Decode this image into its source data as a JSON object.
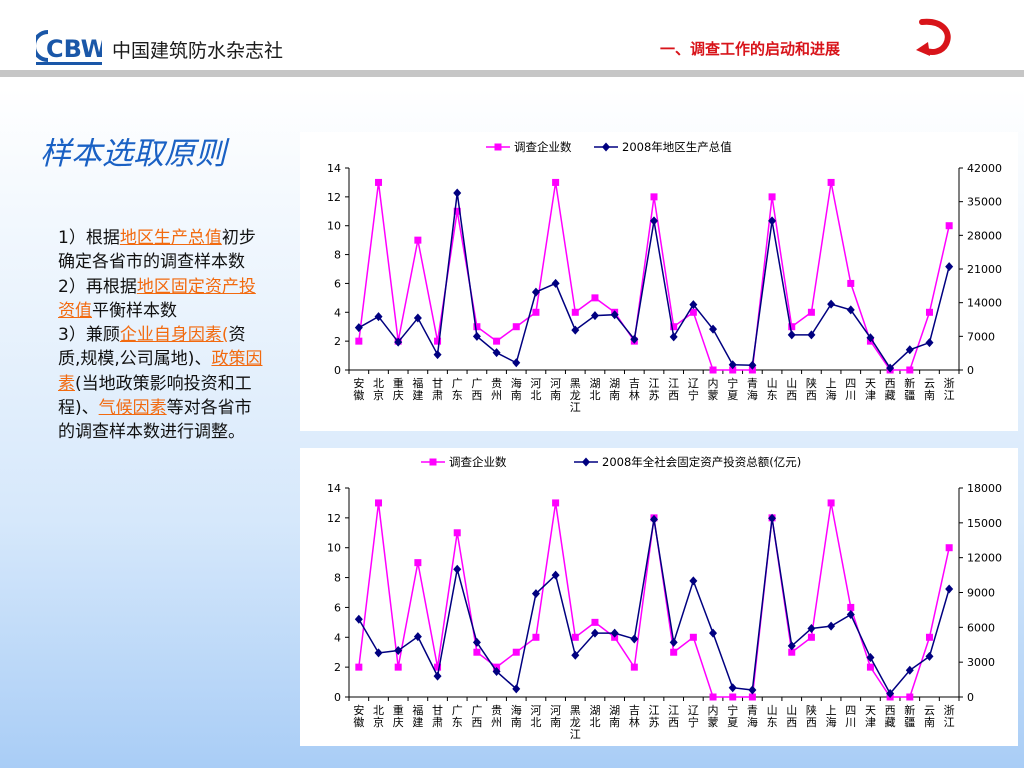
{
  "header": {
    "logo_text": "CBW",
    "brand_name": "中国建筑防水杂志社",
    "section_title": "一、调查工作的启动和进展",
    "return_icon": "curved-return-arrow-icon"
  },
  "slide": {
    "title": "样本选取原则",
    "points": [
      {
        "pre": "1）根据",
        "link": "地区生产总值",
        "post": "初步确定各省市的调查样本数"
      },
      {
        "pre": "2）再根据",
        "link": "地区固定资产投资值",
        "post": "平衡样本数"
      },
      {
        "pre": "3）兼顾",
        "link": "企业自身因素(",
        "mid1": "资质,规模,公司属地)、",
        "link2": "政策因素",
        "mid2": "(当地政策影响投资和工程)、",
        "link3": "气候因素",
        "post": "等对各省市的调查样本数进行调整。"
      }
    ]
  },
  "colors": {
    "series_survey": "#ff00ff",
    "series_econ": "#000080",
    "title_blue": "#1a61c4",
    "section_red": "#d8141a",
    "highlight": "#f26a0f"
  },
  "chart_data": [
    {
      "type": "line",
      "title": "",
      "categories": [
        "安徽",
        "北京",
        "重庆",
        "福建",
        "甘肃",
        "广东",
        "广西",
        "贵州",
        "海南",
        "河北",
        "河南",
        "黑龙江",
        "湖北",
        "湖南",
        "吉林",
        "江苏",
        "江西",
        "辽宁",
        "内蒙",
        "宁夏",
        "青海",
        "山东",
        "山西",
        "陕西",
        "上海",
        "四川",
        "天津",
        "西藏",
        "新疆",
        "云南",
        "浙江"
      ],
      "series": [
        {
          "name": "调查企业数",
          "axis": "left",
          "values": [
            2,
            13,
            2,
            9,
            2,
            11,
            3,
            2,
            3,
            4,
            13,
            4,
            5,
            4,
            2,
            12,
            3,
            4,
            0,
            0,
            0,
            12,
            3,
            4,
            13,
            6,
            2,
            0,
            0,
            4,
            10
          ]
        },
        {
          "name": "2008年地区生产总值",
          "axis": "right",
          "values": [
            8800,
            11100,
            5800,
            10800,
            3200,
            36800,
            7000,
            3600,
            1500,
            16200,
            18000,
            8300,
            11300,
            11500,
            6400,
            31000,
            6900,
            13600,
            8500,
            1100,
            1000,
            31000,
            7300,
            7300,
            13700,
            12500,
            6700,
            400,
            4200,
            5700,
            21500
          ]
        }
      ],
      "yleft": {
        "min": 0,
        "max": 14,
        "ticks": [
          0,
          2,
          4,
          6,
          8,
          10,
          12,
          14
        ]
      },
      "yright": {
        "min": 0,
        "max": 42000,
        "ticks": [
          0,
          7000,
          14000,
          21000,
          28000,
          35000,
          42000
        ]
      },
      "legend": "top"
    },
    {
      "type": "line",
      "title": "",
      "categories": [
        "安徽",
        "北京",
        "重庆",
        "福建",
        "甘肃",
        "广东",
        "广西",
        "贵州",
        "海南",
        "河北",
        "河南",
        "黑龙江",
        "湖北",
        "湖南",
        "吉林",
        "江苏",
        "江西",
        "辽宁",
        "内蒙",
        "宁夏",
        "青海",
        "山东",
        "山西",
        "陕西",
        "上海",
        "四川",
        "天津",
        "西藏",
        "新疆",
        "云南",
        "浙江"
      ],
      "series": [
        {
          "name": "调查企业数",
          "axis": "left",
          "values": [
            2,
            13,
            2,
            9,
            2,
            11,
            3,
            2,
            3,
            4,
            13,
            4,
            5,
            4,
            2,
            12,
            3,
            4,
            0,
            0,
            0,
            12,
            3,
            4,
            13,
            6,
            2,
            0,
            0,
            4,
            10
          ]
        },
        {
          "name": "2008年全社会固定资产投资总额(亿元)",
          "axis": "right",
          "values": [
            6700,
            3800,
            4000,
            5200,
            1800,
            11000,
            4700,
            2200,
            700,
            8900,
            10500,
            3600,
            5500,
            5500,
            5000,
            15300,
            4700,
            10000,
            5500,
            800,
            600,
            15400,
            4400,
            5900,
            6100,
            7100,
            3400,
            300,
            2300,
            3500,
            9300
          ]
        }
      ],
      "yleft": {
        "min": 0,
        "max": 14,
        "ticks": [
          0,
          2,
          4,
          6,
          8,
          10,
          12,
          14
        ]
      },
      "yright": {
        "min": 0,
        "max": 18000,
        "ticks": [
          0,
          3000,
          6000,
          9000,
          12000,
          15000,
          18000
        ]
      },
      "legend": "top"
    }
  ]
}
